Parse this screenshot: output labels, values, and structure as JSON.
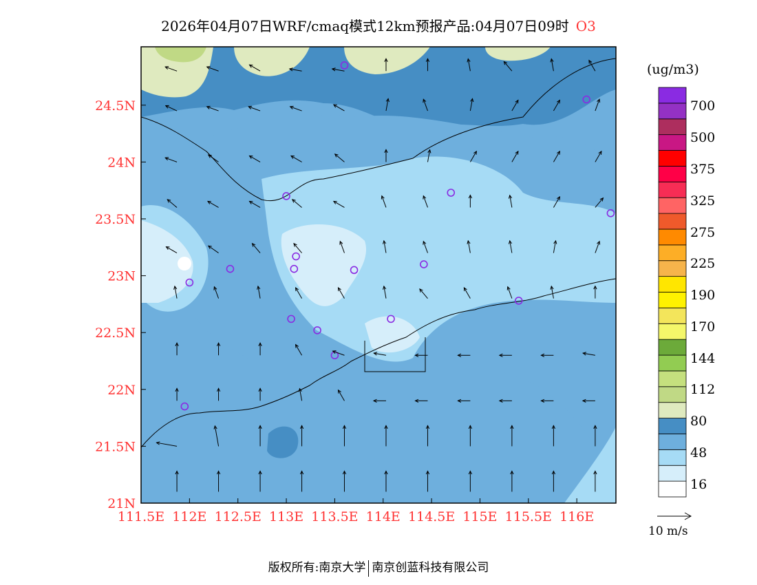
{
  "title": {
    "text": "2026年04月07日WRF/cmaq模式12km预报产品:04月07日09时",
    "pollutant": "O3",
    "pollutant_color": "#ff3333"
  },
  "map": {
    "lon_range": [
      111.5,
      116.45
    ],
    "lat_range": [
      21.0,
      24.92
    ],
    "x_ticks": [
      "111.5E",
      "112E",
      "112.5E",
      "113E",
      "113.5E",
      "114E",
      "114.5E",
      "115E",
      "115.5E",
      "116E"
    ],
    "x_tick_values": [
      111.5,
      112,
      112.5,
      113,
      113.5,
      114,
      114.5,
      115,
      115.5,
      116
    ],
    "y_ticks": [
      "21N",
      "21.5N",
      "22N",
      "22.5N",
      "23N",
      "23.5N",
      "24N",
      "24.5N"
    ],
    "y_tick_values": [
      21,
      21.5,
      22,
      22.5,
      23,
      23.5,
      24,
      24.5
    ],
    "stations": [
      [
        113.6,
        24.85
      ],
      [
        116.1,
        24.55
      ],
      [
        113.0,
        23.7
      ],
      [
        114.7,
        23.73
      ],
      [
        116.35,
        23.55
      ],
      [
        113.1,
        23.17
      ],
      [
        112.42,
        23.06
      ],
      [
        113.08,
        23.06
      ],
      [
        113.7,
        23.05
      ],
      [
        114.42,
        23.1
      ],
      [
        112.0,
        22.94
      ],
      [
        115.4,
        22.78
      ],
      [
        113.05,
        22.62
      ],
      [
        114.08,
        22.62
      ],
      [
        113.32,
        22.52
      ],
      [
        113.5,
        22.3
      ],
      [
        111.95,
        21.85
      ]
    ],
    "station_color": "#8a2be2",
    "wind_lats": [
      24.8,
      24.45,
      24.0,
      23.6,
      23.2,
      22.8,
      22.3,
      21.9,
      21.5,
      21.1
    ],
    "wind_lons": [
      111.87,
      112.3,
      112.73,
      113.16,
      113.6,
      114.03,
      114.46,
      114.9,
      115.33,
      115.76,
      116.19
    ],
    "wind_dir_deg": [
      [
        160,
        160,
        150,
        170,
        170,
        90,
        90,
        100,
        130,
        100,
        120
      ],
      [
        155,
        160,
        160,
        160,
        150,
        80,
        110,
        80,
        60,
        60,
        70
      ],
      [
        160,
        145,
        150,
        150,
        140,
        90,
        80,
        60,
        60,
        60,
        60
      ],
      [
        140,
        150,
        150,
        140,
        150,
        110,
        110,
        90,
        100,
        60,
        50
      ],
      [
        150,
        145,
        130,
        130,
        110,
        100,
        110,
        100,
        100,
        80,
        70
      ],
      [
        100,
        110,
        100,
        120,
        120,
        100,
        130,
        120,
        110,
        100,
        90
      ],
      [
        90,
        90,
        90,
        120,
        160,
        170,
        180,
        180,
        180,
        180,
        170
      ],
      [
        90,
        90,
        90,
        100,
        120,
        180,
        180,
        180,
        180,
        180,
        180
      ],
      [
        170,
        100,
        90,
        90,
        90,
        90,
        90,
        90,
        90,
        90,
        90
      ],
      [
        90,
        90,
        90,
        90,
        90,
        90,
        90,
        90,
        90,
        90,
        90
      ]
    ]
  },
  "colorbar": {
    "unit": "(ug/m3)",
    "colors": [
      "#ffffff",
      "#d6eefa",
      "#a6dbf5",
      "#6eafdd",
      "#468ec4",
      "#dfeabf",
      "#c0d985",
      "#c5e07e",
      "#92cc52",
      "#6caa3a",
      "#f4f76a",
      "#f3e55b",
      "#fff200",
      "#ffe600",
      "#f6b44b",
      "#fdae26",
      "#ff8a00",
      "#ef5a2b",
      "#ff6464",
      "#f72d55",
      "#ff0047",
      "#ff0000",
      "#c91784",
      "#ad2e5e",
      "#9431c4",
      "#8a2be2"
    ],
    "labels": [
      "16",
      "48",
      "80",
      "112",
      "144",
      "170",
      "190",
      "225",
      "275",
      "325",
      "375",
      "500",
      "700"
    ]
  },
  "wind_reference": "10 m/s",
  "footer": {
    "left": "版权所有:南京大学",
    "right": "南京创蓝科技有限公司"
  }
}
